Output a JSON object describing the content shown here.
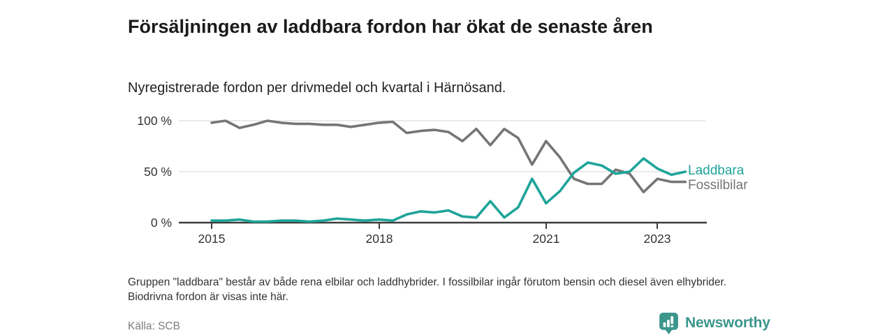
{
  "header": {
    "title": "Försäljningen av laddbara fordon har ökat de senaste åren",
    "subtitle": "Nyregistrerade fordon per drivmedel och kvartal i Härnösand."
  },
  "chart_data": {
    "type": "line",
    "x_unit": "quarter",
    "x": [
      "2015-Q1",
      "2015-Q2",
      "2015-Q3",
      "2015-Q4",
      "2016-Q1",
      "2016-Q2",
      "2016-Q3",
      "2016-Q4",
      "2017-Q1",
      "2017-Q2",
      "2017-Q3",
      "2017-Q4",
      "2018-Q1",
      "2018-Q2",
      "2018-Q3",
      "2018-Q4",
      "2019-Q1",
      "2019-Q2",
      "2019-Q3",
      "2019-Q4",
      "2020-Q1",
      "2020-Q2",
      "2020-Q3",
      "2020-Q4",
      "2021-Q1",
      "2021-Q2",
      "2021-Q3",
      "2021-Q4",
      "2022-Q1",
      "2022-Q2",
      "2022-Q3",
      "2022-Q4",
      "2023-Q1",
      "2023-Q2",
      "2023-Q3"
    ],
    "series": [
      {
        "name": "Laddbara",
        "color": "#1fa49a",
        "values": [
          2,
          2,
          3,
          1,
          1,
          2,
          2,
          1,
          2,
          4,
          3,
          2,
          3,
          2,
          8,
          11,
          10,
          12,
          6,
          5,
          21,
          5,
          15,
          43,
          19,
          31,
          49,
          59,
          56,
          48,
          50,
          63,
          53,
          47,
          50
        ]
      },
      {
        "name": "Fossilbilar",
        "color": "#757575",
        "values": [
          98,
          100,
          93,
          96,
          100,
          98,
          97,
          97,
          96,
          96,
          94,
          96,
          98,
          99,
          88,
          90,
          91,
          89,
          80,
          92,
          76,
          92,
          83,
          57,
          80,
          64,
          43,
          38,
          38,
          52,
          48,
          30,
          43,
          40,
          40
        ]
      }
    ],
    "ylim": [
      0,
      100
    ],
    "y_unit": "%",
    "yticks": [
      "100 %",
      "50 %",
      "0 %"
    ],
    "xticks": [
      "2015",
      "2018",
      "2021",
      "2023"
    ],
    "grid": "horizontal",
    "legend_position": "right-of-line-end"
  },
  "footer": {
    "note": "Gruppen \"laddbara\" består av både rena elbilar och laddhybrider. I fossilbilar ingår förutom bensin och diesel även elhybrider. Biodrivna fordon är visas inte här.",
    "source": "Källa: SCB",
    "brand": "Newsworthy"
  },
  "colors": {
    "accent_teal": "#1fa49a",
    "neutral_gray": "#757575",
    "brand_teal": "#3b968c",
    "axis": "#3c3c3c",
    "gridline": "#dddddd"
  }
}
